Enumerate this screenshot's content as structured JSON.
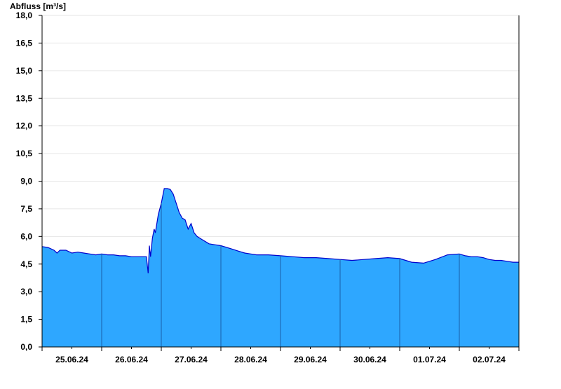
{
  "chart_data": {
    "type": "area",
    "ylabel": "Abfluss [m³/s]",
    "xlabel": "",
    "title": "",
    "ylim": [
      0,
      18
    ],
    "y_ticks": [
      "0,0",
      "1,5",
      "3,0",
      "4,5",
      "6,0",
      "7,5",
      "9,0",
      "10,5",
      "12,0",
      "13,5",
      "15,0",
      "16,5",
      "18,0"
    ],
    "y_tick_values": [
      0,
      1.5,
      3,
      4.5,
      6,
      7.5,
      9,
      10.5,
      12,
      13.5,
      15,
      16.5,
      18
    ],
    "x_domain_days": [
      0,
      8
    ],
    "x_ticks": [
      "25.06.24",
      "26.06.24",
      "27.06.24",
      "28.06.24",
      "29.06.24",
      "30.06.24",
      "01.07.24",
      "02.07.24"
    ],
    "grid": true,
    "legend": "none",
    "colors": {
      "fill": "#2ea7ff",
      "line": "#0000cc",
      "grid": "#e6e6e6",
      "axis": "#000000",
      "day_divider": "#1a5fa8"
    },
    "series": [
      {
        "x": [
          0,
          0.1,
          0.2,
          0.25,
          0.3,
          0.4,
          0.5,
          0.6,
          0.7,
          0.8,
          0.9,
          1.0,
          1.1,
          1.2,
          1.3,
          1.4,
          1.5,
          1.6,
          1.7,
          1.75,
          1.78,
          1.8,
          1.82,
          1.85,
          1.88,
          1.9,
          1.95,
          2.0,
          2.05,
          2.1,
          2.15,
          2.2,
          2.25,
          2.3,
          2.35,
          2.4,
          2.45,
          2.5,
          2.55,
          2.6,
          2.65,
          2.7,
          2.75,
          2.8,
          2.9,
          3.0,
          3.1,
          3.2,
          3.3,
          3.4,
          3.5,
          3.6,
          3.8,
          4.0,
          4.2,
          4.4,
          4.6,
          4.8,
          5.0,
          5.2,
          5.4,
          5.6,
          5.8,
          6.0,
          6.2,
          6.4,
          6.6,
          6.8,
          7.0,
          7.1,
          7.2,
          7.3,
          7.4,
          7.5,
          7.6,
          7.7,
          7.8,
          7.9,
          8.0
        ],
        "y": [
          5.45,
          5.4,
          5.25,
          5.1,
          5.25,
          5.25,
          5.1,
          5.15,
          5.1,
          5.05,
          5.0,
          5.05,
          5.0,
          5.0,
          4.95,
          4.95,
          4.9,
          4.9,
          4.9,
          4.9,
          4.0,
          5.5,
          4.9,
          5.9,
          6.4,
          6.2,
          7.2,
          7.8,
          8.6,
          8.6,
          8.55,
          8.3,
          7.8,
          7.3,
          7.0,
          6.9,
          6.4,
          6.7,
          6.2,
          6.0,
          5.9,
          5.8,
          5.7,
          5.6,
          5.55,
          5.5,
          5.4,
          5.3,
          5.2,
          5.1,
          5.05,
          5.0,
          5.0,
          4.95,
          4.9,
          4.85,
          4.85,
          4.8,
          4.75,
          4.7,
          4.75,
          4.8,
          4.85,
          4.8,
          4.6,
          4.55,
          4.75,
          5.0,
          5.05,
          4.95,
          4.9,
          4.9,
          4.85,
          4.75,
          4.7,
          4.7,
          4.65,
          4.6,
          4.6
        ]
      }
    ]
  }
}
